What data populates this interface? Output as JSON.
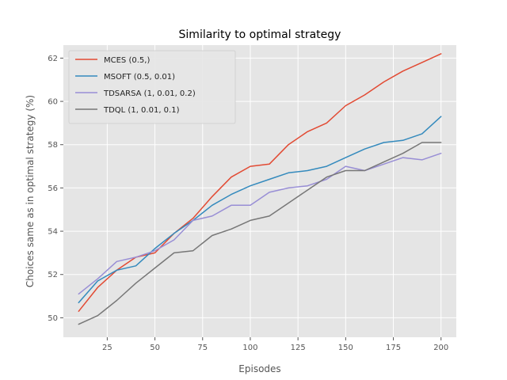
{
  "chart_data": {
    "type": "line",
    "title": "Similarity to optimal strategy",
    "xlabel": "Episodes",
    "ylabel": "Choices same as in optimal strategy (%)",
    "xlim": [
      2,
      208
    ],
    "ylim": [
      49.1,
      62.6
    ],
    "xticks": [
      25,
      50,
      75,
      100,
      125,
      150,
      175,
      200
    ],
    "yticks": [
      50,
      52,
      54,
      56,
      58,
      60,
      62
    ],
    "grid": true,
    "legend_position": "top-left",
    "x": [
      10,
      20,
      30,
      40,
      50,
      60,
      70,
      80,
      90,
      100,
      110,
      120,
      130,
      140,
      150,
      160,
      170,
      180,
      190,
      200
    ],
    "series": [
      {
        "name": "MCES (0.5,)",
        "color": "#E24A33",
        "values": [
          50.3,
          51.4,
          52.2,
          52.8,
          53.0,
          53.9,
          54.6,
          55.6,
          56.5,
          57.0,
          57.1,
          58.0,
          58.6,
          59.0,
          59.8,
          60.3,
          60.9,
          61.4,
          61.8,
          62.2
        ]
      },
      {
        "name": "MSOFT (0.5, 0.01)",
        "color": "#348ABD",
        "values": [
          50.7,
          51.7,
          52.2,
          52.4,
          53.2,
          53.9,
          54.5,
          55.2,
          55.7,
          56.1,
          56.4,
          56.7,
          56.8,
          57.0,
          57.4,
          57.8,
          58.1,
          58.2,
          58.5,
          59.3
        ]
      },
      {
        "name": "TDSARSA (1, 0.01, 0.2)",
        "color": "#988ED5",
        "values": [
          51.1,
          51.8,
          52.6,
          52.8,
          53.1,
          53.6,
          54.5,
          54.7,
          55.2,
          55.2,
          55.8,
          56.0,
          56.1,
          56.4,
          57.0,
          56.8,
          57.1,
          57.4,
          57.3,
          57.6
        ]
      },
      {
        "name": "TDQL (1, 0.01, 0.1)",
        "color": "#777777",
        "values": [
          49.7,
          50.1,
          50.8,
          51.6,
          52.3,
          53.0,
          53.1,
          53.8,
          54.1,
          54.5,
          54.7,
          55.3,
          55.9,
          56.5,
          56.8,
          56.8,
          57.2,
          57.6,
          58.1,
          58.1
        ]
      }
    ]
  }
}
